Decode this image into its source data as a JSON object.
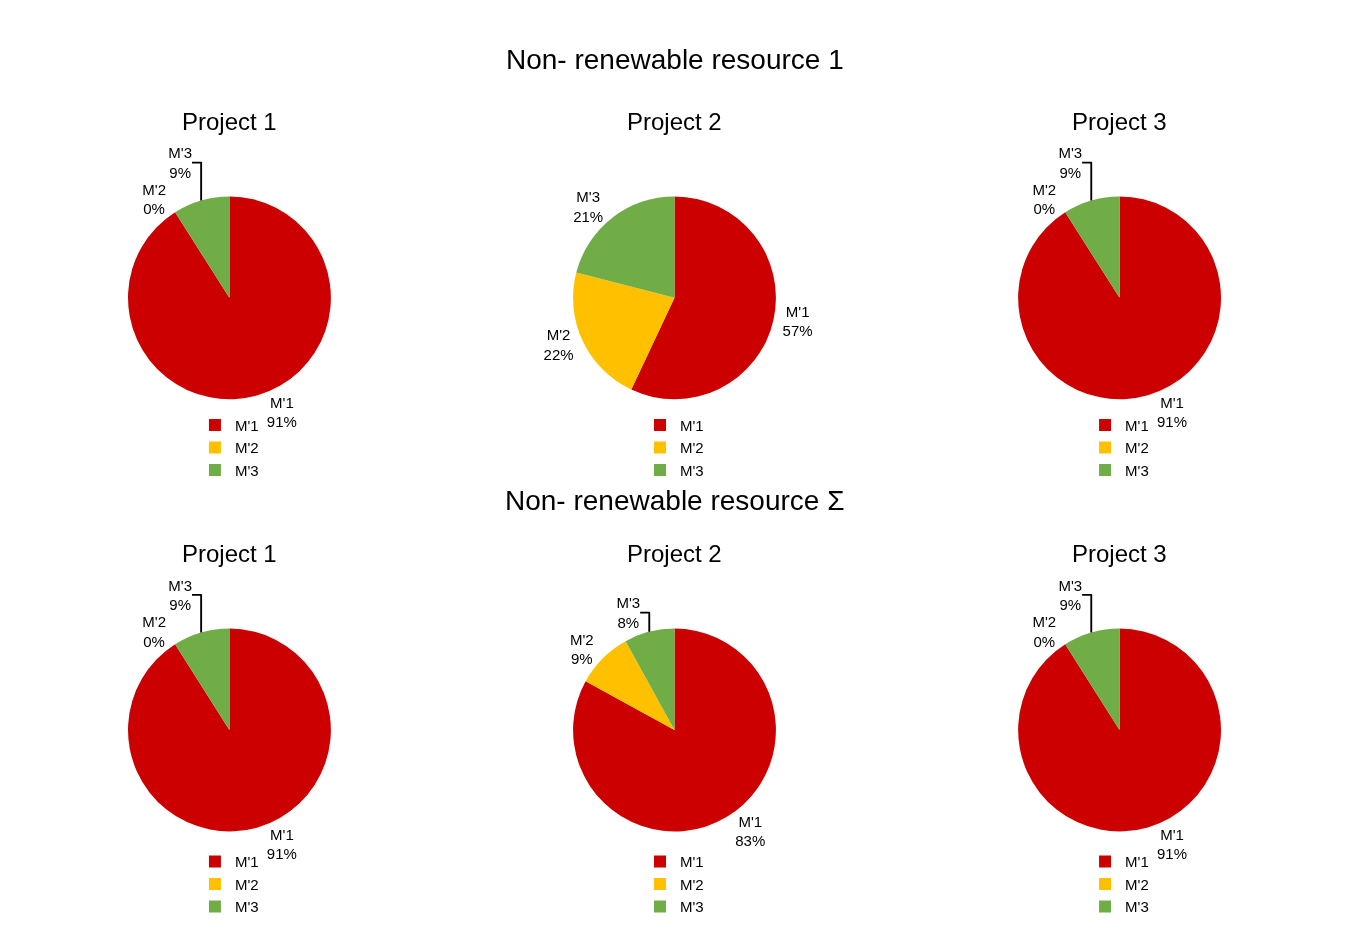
{
  "chart_data": [
    {
      "type": "pie",
      "title": "Project 1",
      "annotations": [
        "Non- renewable resource 1"
      ],
      "categories": [
        "M'1",
        "M'2",
        "M'3"
      ],
      "values": [
        91,
        0,
        9
      ],
      "value_labels": [
        "91%",
        "0%",
        "9%"
      ],
      "colors": [
        "#cc0000",
        "#ffc000",
        "#70ad47"
      ],
      "legend": "bottom"
    },
    {
      "type": "pie",
      "title": "Project 2",
      "categories": [
        "M'1",
        "M'2",
        "M'3"
      ],
      "values": [
        57,
        22,
        21
      ],
      "value_labels": [
        "57%",
        "22%",
        "21%"
      ],
      "colors": [
        "#cc0000",
        "#ffc000",
        "#70ad47"
      ],
      "legend": "bottom"
    },
    {
      "type": "pie",
      "title": "Project 3",
      "categories": [
        "M'1",
        "M'2",
        "M'3"
      ],
      "values": [
        91,
        0,
        9
      ],
      "value_labels": [
        "91%",
        "0%",
        "9%"
      ],
      "colors": [
        "#cc0000",
        "#ffc000",
        "#70ad47"
      ],
      "legend": "bottom"
    },
    {
      "type": "pie",
      "title": "Project 1",
      "annotations": [
        "Non- renewable resource Σ"
      ],
      "categories": [
        "M'1",
        "M'2",
        "M'3"
      ],
      "values": [
        91,
        0,
        9
      ],
      "value_labels": [
        "91%",
        "0%",
        "9%"
      ],
      "colors": [
        "#cc0000",
        "#ffc000",
        "#70ad47"
      ],
      "legend": "bottom"
    },
    {
      "type": "pie",
      "title": "Project 2",
      "categories": [
        "M'1",
        "M'2",
        "M'3"
      ],
      "values": [
        83,
        9,
        8
      ],
      "value_labels": [
        "83%",
        "9%",
        "8%"
      ],
      "colors": [
        "#cc0000",
        "#ffc000",
        "#70ad47"
      ],
      "legend": "bottom"
    },
    {
      "type": "pie",
      "title": "Project 3",
      "categories": [
        "M'1",
        "M'2",
        "M'3"
      ],
      "values": [
        91,
        0,
        9
      ],
      "value_labels": [
        "91%",
        "0%",
        "9%"
      ],
      "colors": [
        "#cc0000",
        "#ffc000",
        "#70ad47"
      ],
      "legend": "bottom"
    }
  ]
}
